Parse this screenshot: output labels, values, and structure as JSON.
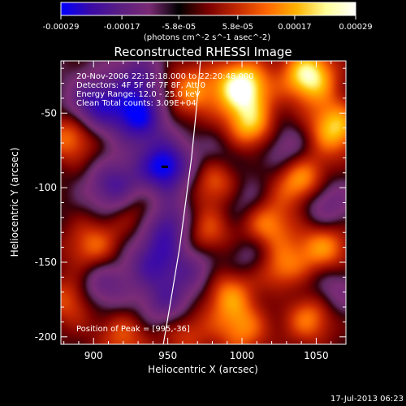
{
  "colorbar": {
    "tick_labels": [
      "-0.00029",
      "-0.00017",
      "-5.8e-05",
      "5.8e-05",
      "0.00017",
      "0.00029"
    ],
    "tick_values": [
      -0.00029,
      -0.00017,
      -5.8e-05,
      5.8e-05,
      0.00017,
      0.00029
    ],
    "range": [
      -0.00029,
      0.00029
    ],
    "unit_label": "(photons cm^-2 s^-1 asec^-2)",
    "colors": [
      "#0000ff",
      "#3a0aa6",
      "#5a1e82",
      "#7a2a74",
      "#000000",
      "#7a0000",
      "#c42a00",
      "#ff6600",
      "#ffb400",
      "#ffff9a",
      "#ffffff"
    ]
  },
  "chart_data": {
    "type": "heatmap",
    "title": "Reconstructed RHESSI Image",
    "xlabel": "Heliocentric X (arcsec)",
    "ylabel": "Heliocentric Y (arcsec)",
    "xlim": [
      878,
      1070
    ],
    "ylim": [
      -205,
      -15
    ],
    "x_ticks": [
      900,
      950,
      1000,
      1050
    ],
    "x_tick_labels": [
      "900",
      "950",
      "1000",
      "1050"
    ],
    "y_ticks": [
      -200,
      -150,
      -100,
      -50
    ],
    "y_tick_labels": [
      "-200",
      "-150",
      "-100",
      "-50"
    ],
    "annotations": [
      "20-Nov-2006 22:15:18.000 to 22:20:48.000",
      "Detectors: 4F 5F 6F 7F 8F, Att 0",
      "Energy Range: 12.0 - 25.0 keV",
      "Clean     Total counts: 3.09E+04"
    ],
    "peak_label": "Position of Peak = [995,-36]",
    "peak_position": [
      995,
      -36
    ],
    "limb_curve": {
      "x": [
        972,
        969,
        966,
        962,
        958,
        953,
        947
      ],
      "y": [
        -15,
        -50,
        -80,
        -110,
        -140,
        -170,
        -205
      ]
    },
    "marker": {
      "x": 948,
      "y": -86
    },
    "blobs": [
      {
        "x": 1000,
        "y": -32,
        "v": 1.0
      },
      {
        "x": 1045,
        "y": -25,
        "v": 0.95
      },
      {
        "x": 1062,
        "y": -60,
        "v": 0.8
      },
      {
        "x": 1005,
        "y": -60,
        "v": 0.75
      },
      {
        "x": 1040,
        "y": -95,
        "v": 0.85
      },
      {
        "x": 985,
        "y": -95,
        "v": 0.7
      },
      {
        "x": 1015,
        "y": -125,
        "v": 0.75
      },
      {
        "x": 975,
        "y": -130,
        "v": 0.55
      },
      {
        "x": 1025,
        "y": -155,
        "v": 0.8
      },
      {
        "x": 1055,
        "y": -140,
        "v": 0.65
      },
      {
        "x": 990,
        "y": -170,
        "v": 0.6
      },
      {
        "x": 1045,
        "y": -185,
        "v": 0.7
      },
      {
        "x": 1000,
        "y": -195,
        "v": 0.55
      },
      {
        "x": 960,
        "y": -195,
        "v": 0.5
      },
      {
        "x": 965,
        "y": -35,
        "v": 0.6
      },
      {
        "x": 885,
        "y": -65,
        "v": 0.6
      },
      {
        "x": 885,
        "y": -175,
        "v": 0.5
      },
      {
        "x": 900,
        "y": -140,
        "v": 0.55
      },
      {
        "x": 930,
        "y": -115,
        "v": 0.45
      },
      {
        "x": 920,
        "y": -200,
        "v": 0.45
      },
      {
        "x": 948,
        "y": -86,
        "v": -1.0
      },
      {
        "x": 930,
        "y": -52,
        "v": -0.9
      },
      {
        "x": 900,
        "y": -45,
        "v": -0.8
      },
      {
        "x": 950,
        "y": -125,
        "v": -0.75
      },
      {
        "x": 915,
        "y": -100,
        "v": -0.7
      },
      {
        "x": 940,
        "y": -150,
        "v": -0.6
      },
      {
        "x": 905,
        "y": -165,
        "v": -0.55
      },
      {
        "x": 950,
        "y": -180,
        "v": -0.6
      },
      {
        "x": 970,
        "y": -155,
        "v": -0.45
      },
      {
        "x": 1010,
        "y": -145,
        "v": -0.5
      },
      {
        "x": 1030,
        "y": -75,
        "v": -0.45
      },
      {
        "x": 1055,
        "y": -110,
        "v": -0.55
      },
      {
        "x": 1000,
        "y": -110,
        "v": -0.45
      },
      {
        "x": 1030,
        "y": -170,
        "v": -0.35
      },
      {
        "x": 990,
        "y": -80,
        "v": -0.4
      },
      {
        "x": 1060,
        "y": -170,
        "v": -0.4
      },
      {
        "x": 930,
        "y": -25,
        "v": -0.5
      }
    ]
  },
  "footer": {
    "timestamp": "17-Jul-2013 06:23"
  }
}
